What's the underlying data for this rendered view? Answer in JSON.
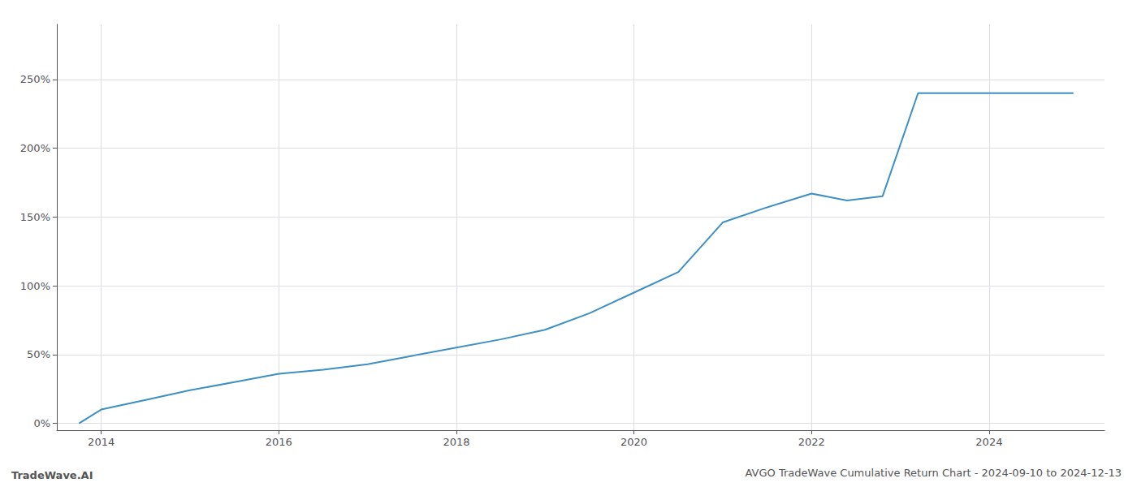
{
  "chart_data": {
    "type": "line",
    "title": "AVGO TradeWave Cumulative Return Chart - 2024-09-10 to 2024-12-13",
    "annotations": [
      "TradeWave.AI"
    ],
    "x": [
      2013.75,
      2014.0,
      2014.5,
      2015.0,
      2015.5,
      2016.0,
      2016.5,
      2017.0,
      2017.5,
      2018.0,
      2018.5,
      2019.0,
      2019.5,
      2020.0,
      2020.5,
      2021.0,
      2021.5,
      2022.0,
      2022.4,
      2022.8,
      2023.2,
      2024.0,
      2024.5,
      2024.95
    ],
    "values": [
      0.0,
      0.1,
      0.17,
      0.24,
      0.3,
      0.36,
      0.39,
      0.43,
      0.49,
      0.55,
      0.61,
      0.68,
      0.8,
      0.95,
      1.1,
      1.46,
      1.57,
      1.67,
      1.62,
      1.65,
      2.4,
      2.4,
      2.4,
      2.4
    ],
    "color": "#3d8fc4",
    "xlim": [
      2013.5,
      2025.3
    ],
    "xticks": [
      2014,
      2016,
      2018,
      2020,
      2022,
      2024
    ],
    "ylim": [
      -0.05,
      2.9
    ],
    "yticks": [
      {
        "value": 0.0,
        "label": "0%"
      },
      {
        "value": 0.5,
        "label": "50%"
      },
      {
        "value": 1.0,
        "label": "100%"
      },
      {
        "value": 1.5,
        "label": "150%"
      },
      {
        "value": 2.0,
        "label": "200%"
      },
      {
        "value": 2.5,
        "label": "250%"
      }
    ],
    "grid": true
  }
}
